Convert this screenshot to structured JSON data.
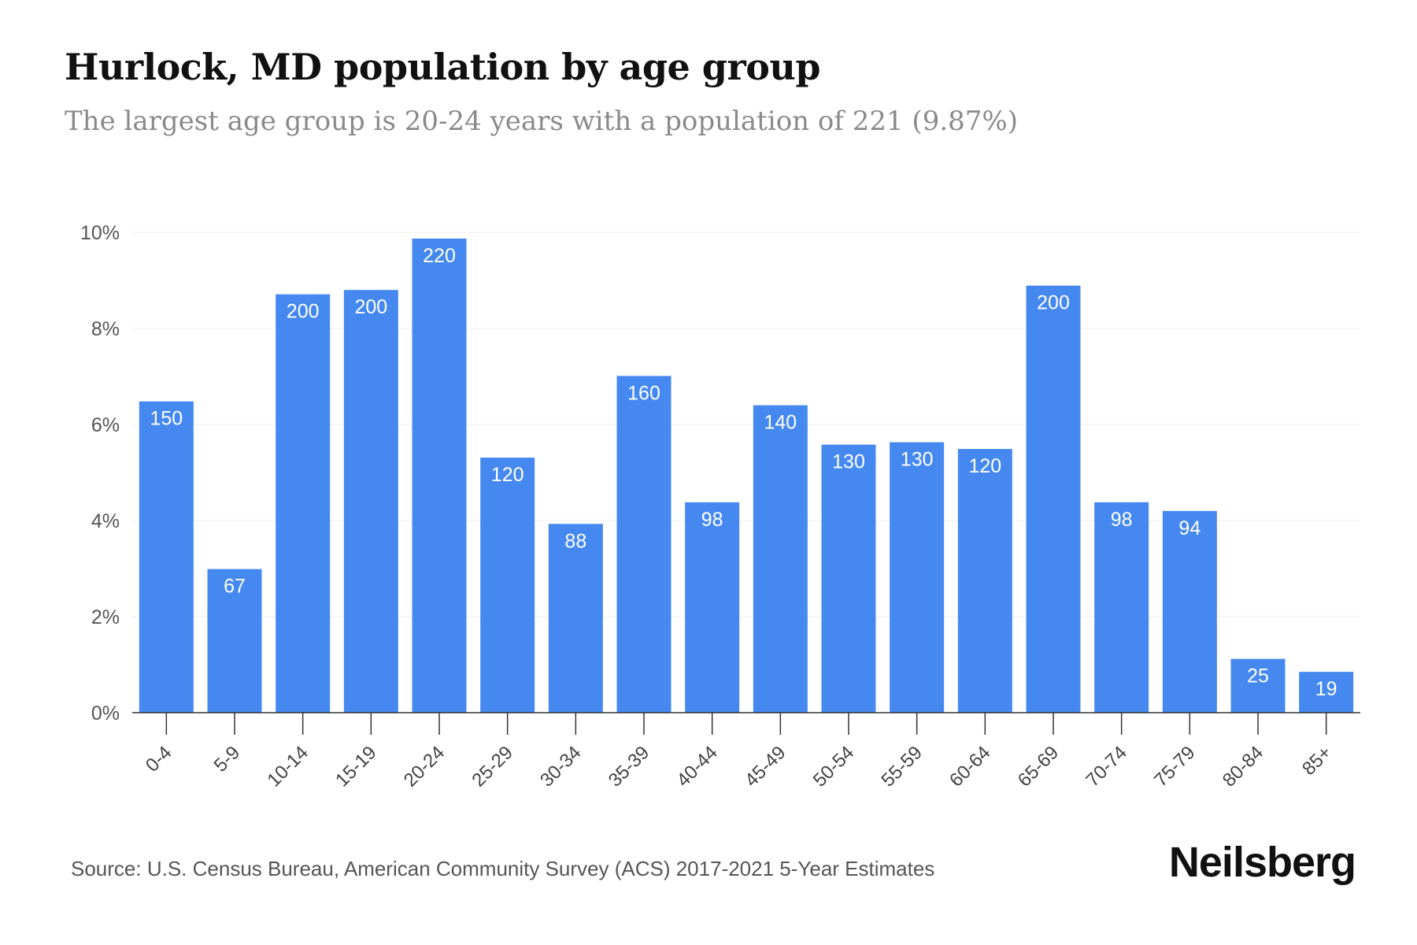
{
  "title": "Hurlock, MD population by age group",
  "subtitle": "The largest age group is 20-24 years with a population of 221 (9.87%)",
  "source": "Source: U.S. Census Bureau, American Community Survey (ACS) 2017-2021 5-Year Estimates",
  "brand": "Neilsberg",
  "colors": {
    "bar": "#4589f0",
    "grid": "#eeeeee",
    "axis": "#333333",
    "label_in_bar": "#ffffff"
  },
  "chart_data": {
    "type": "bar",
    "categories": [
      "0-4",
      "5-9",
      "10-14",
      "15-19",
      "20-24",
      "25-29",
      "30-34",
      "35-39",
      "40-44",
      "45-49",
      "50-54",
      "55-59",
      "60-64",
      "65-69",
      "70-74",
      "75-79",
      "80-84",
      "85+"
    ],
    "values": [
      6.48,
      2.99,
      8.71,
      8.8,
      9.87,
      5.31,
      3.93,
      7.01,
      4.38,
      6.4,
      5.58,
      5.63,
      5.49,
      8.89,
      4.38,
      4.2,
      1.12,
      0.85
    ],
    "data_labels": [
      "150",
      "67",
      "200",
      "200",
      "220",
      "120",
      "88",
      "160",
      "98",
      "140",
      "130",
      "130",
      "120",
      "200",
      "98",
      "94",
      "25",
      "19"
    ],
    "y_ticks": [
      "0%",
      "2%",
      "4%",
      "6%",
      "8%",
      "10%"
    ],
    "y_tick_values": [
      0,
      2,
      4,
      6,
      8,
      10
    ],
    "ylim": [
      0,
      10
    ],
    "xlabel": "",
    "ylabel": "",
    "grid": true
  }
}
